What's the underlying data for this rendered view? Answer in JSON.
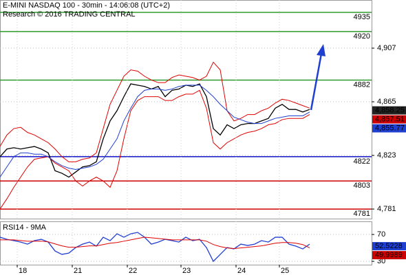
{
  "chart_data": [
    {
      "type": "line",
      "title": "E-MINI NASDAQ 100 - 30min - 14:06:08 (UTC+2)",
      "subtitle": "Research © 2016 TRADING CENTRAL",
      "x": [
        0,
        2,
        4,
        6,
        8,
        10,
        12,
        14,
        16,
        18,
        20,
        22,
        24,
        26,
        28,
        30,
        32,
        34,
        36,
        38,
        40,
        42,
        44,
        46,
        48,
        50,
        52,
        54,
        56,
        58,
        60,
        62,
        64,
        66,
        68,
        70,
        72,
        74,
        76,
        78,
        80,
        82,
        84,
        86,
        88,
        90
      ],
      "series": [
        {
          "color": "#000000",
          "values": [
            4822,
            4828,
            4829,
            4828,
            4829,
            4830,
            4828,
            4825,
            4811,
            4809,
            4806,
            4810,
            4814,
            4815,
            4818,
            4836,
            4850,
            4858,
            4869,
            4879,
            4878,
            4877,
            4875,
            4877,
            4869,
            4874,
            4875,
            4878,
            4877,
            4879,
            4869,
            4844,
            4839,
            4847,
            4844,
            4847,
            4848,
            4848,
            4850,
            4852,
            4860,
            4863,
            4859,
            4859,
            4857,
            4859
          ]
        },
        {
          "color": "#e00000",
          "values": [
            4830,
            4839,
            4844,
            4845,
            4841,
            4839,
            4836,
            4833,
            4828,
            4822,
            4818,
            4818,
            4820,
            4821,
            4825,
            4844,
            4863,
            4874,
            4885,
            4890,
            4889,
            4885,
            4882,
            4880,
            4880,
            4884,
            4886,
            4885,
            4884,
            4882,
            4885,
            4896,
            4890,
            4858,
            4850,
            4852,
            4855,
            4855,
            4858,
            4860,
            4864,
            4867,
            4866,
            4864,
            4862,
            4860
          ]
        },
        {
          "color": "#e00000",
          "values": [
            4781,
            4789,
            4798,
            4806,
            4814,
            4820,
            4821,
            4822,
            4817,
            4814,
            4811,
            4803,
            4799,
            4803,
            4806,
            4803,
            4798,
            4811,
            4836,
            4858,
            4866,
            4869,
            4869,
            4869,
            4866,
            4866,
            4869,
            4871,
            4871,
            4874,
            4860,
            4833,
            4828,
            4833,
            4836,
            4839,
            4841,
            4842,
            4844,
            4847,
            4848,
            4851,
            4852,
            4852,
            4852,
            4855
          ]
        },
        {
          "color": "#1f3fd0",
          "values": [
            4806,
            4814,
            4822,
            4825,
            4825,
            4824,
            4824,
            4822,
            4818,
            4815,
            4813,
            4812,
            4813,
            4814,
            4816,
            4820,
            4828,
            4836,
            4850,
            4860,
            4869,
            4874,
            4875,
            4875,
            4874,
            4875,
            4877,
            4878,
            4878,
            4878,
            4874,
            4869,
            4863,
            4858,
            4853,
            4851,
            4849,
            4848,
            4848,
            4850,
            4852,
            4853,
            4854,
            4854,
            4854,
            4857
          ]
        }
      ],
      "levels": [
        {
          "value": 4935,
          "color": "#2e9a2e"
        },
        {
          "value": 4920,
          "color": "#2e9a2e"
        },
        {
          "value": 4882,
          "color": "#2e9a2e"
        },
        {
          "value": 4822,
          "color": "#1010c8"
        },
        {
          "value": 4803,
          "color": "#cc0000"
        },
        {
          "value": 4781,
          "color": "#cc0000"
        }
      ],
      "markers": [
        {
          "value": 4858.25,
          "label": "4,858.25",
          "color": "#222222"
        },
        {
          "value": 4857.51,
          "label": "4,857.51",
          "color": "#cc0000"
        },
        {
          "value": 4855.77,
          "label": "4,855.77",
          "color": "#1f3fd0"
        }
      ],
      "xlim": [
        0,
        108
      ],
      "ylim": [
        4773.5,
        4944.7
      ],
      "yticks": [
        {
          "value": 4907,
          "label": "4,907"
        },
        {
          "value": 4865,
          "label": "4,865"
        },
        {
          "value": 4823,
          "label": "4,823"
        },
        {
          "value": 4781,
          "label": "4,781"
        }
      ],
      "grid": true
    },
    {
      "type": "line",
      "title": "RSI14 - 9MA",
      "x": [
        0,
        2,
        4,
        6,
        8,
        10,
        12,
        14,
        16,
        18,
        20,
        22,
        24,
        26,
        28,
        30,
        32,
        34,
        36,
        38,
        40,
        42,
        44,
        46,
        48,
        50,
        52,
        54,
        56,
        58,
        60,
        62,
        64,
        66,
        68,
        70,
        72,
        74,
        76,
        78,
        80,
        82,
        84,
        86,
        88,
        90
      ],
      "series": [
        {
          "color": "#1f3fd0",
          "values": [
            65.9,
            62.8,
            60.8,
            58.7,
            55.6,
            60.8,
            62.8,
            58.7,
            45.4,
            40.3,
            42.3,
            50.5,
            55.6,
            58.7,
            52.6,
            65.9,
            60.8,
            71,
            65.9,
            71,
            73.1,
            65.9,
            55.6,
            58.7,
            62.8,
            60.8,
            58.7,
            65.9,
            60.8,
            62.8,
            50.5,
            30,
            40.3,
            50.5,
            48.5,
            55.6,
            53.6,
            55.6,
            60.8,
            58.7,
            65.9,
            65.9,
            55.6,
            52.6,
            48.5,
            55.6
          ]
        },
        {
          "color": "#e00000",
          "values": [
            62,
            62,
            62,
            61,
            60,
            60,
            60,
            59,
            56,
            53,
            51,
            51,
            52,
            53,
            53,
            55,
            57,
            58,
            60,
            62,
            64,
            66,
            65,
            64,
            63,
            62,
            62,
            62,
            62,
            62,
            60,
            55,
            52,
            50,
            49,
            50,
            51,
            52,
            53,
            55,
            57,
            58,
            58,
            57,
            55,
            50
          ]
        }
      ],
      "markers": [
        {
          "value": 52.5228,
          "color": "#1f3fd0"
        },
        {
          "value": 49.9989,
          "color": "#cc0000"
        }
      ],
      "xlim": [
        0,
        108
      ],
      "ylim": [
        25,
        89.5
      ],
      "yticks": [
        70,
        30
      ],
      "xticks": [
        {
          "value": 5,
          "label": "18"
        },
        {
          "value": 21,
          "label": "21"
        },
        {
          "value": 37,
          "label": "22"
        },
        {
          "value": 52.6,
          "label": "23"
        },
        {
          "value": 68.6,
          "label": "24"
        },
        {
          "value": 81.2,
          "label": "25"
        }
      ],
      "grid": true
    }
  ]
}
